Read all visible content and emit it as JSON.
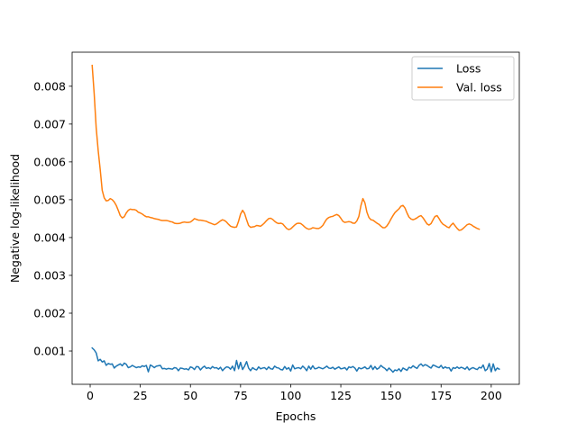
{
  "chart_data": {
    "type": "line",
    "title": "",
    "xlabel": "Epochs",
    "ylabel": "Negative log-likelihood",
    "xlim": [
      -9,
      214
    ],
    "ylim": [
      0.00012,
      0.0089
    ],
    "xticks": [
      0,
      25,
      50,
      75,
      100,
      125,
      150,
      175,
      200
    ],
    "xtick_labels": [
      "0",
      "25",
      "50",
      "75",
      "100",
      "125",
      "150",
      "175",
      "200"
    ],
    "yticks": [
      0.001,
      0.002,
      0.003,
      0.004,
      0.005,
      0.006,
      0.007,
      0.008
    ],
    "ytick_labels": [
      "0.001",
      "0.002",
      "0.003",
      "0.004",
      "0.005",
      "0.006",
      "0.007",
      "0.008"
    ],
    "grid": false,
    "legend_position": "top-right",
    "colors": {
      "Loss": "#1f77b4",
      "Val. loss": "#ff7f0e"
    },
    "series": [
      {
        "name": "Loss",
        "color": "#1f77b4",
        "x_start": 1,
        "values": [
          0.00108,
          0.00103,
          0.00095,
          0.00074,
          0.00078,
          0.00071,
          0.00074,
          0.00062,
          0.00067,
          0.00065,
          0.00066,
          0.00055,
          0.0006,
          0.00063,
          0.00066,
          0.00061,
          0.00068,
          0.00065,
          0.00056,
          0.00058,
          0.00062,
          0.00059,
          0.00056,
          0.00058,
          0.00057,
          0.00061,
          0.00059,
          0.00062,
          0.00045,
          0.00063,
          0.0006,
          0.00056,
          0.0006,
          0.00061,
          0.00062,
          0.00053,
          0.00054,
          0.00052,
          0.00054,
          0.00053,
          0.00052,
          0.00056,
          0.00055,
          0.00048,
          0.00055,
          0.00054,
          0.00052,
          0.00053,
          0.0005,
          0.00058,
          0.00056,
          0.00051,
          0.00059,
          0.00058,
          0.0005,
          0.00056,
          0.0006,
          0.00054,
          0.00056,
          0.00053,
          0.00059,
          0.00055,
          0.00056,
          0.00052,
          0.00057,
          0.00048,
          0.00054,
          0.00058,
          0.00057,
          0.00052,
          0.0006,
          0.00048,
          0.00075,
          0.00053,
          0.0007,
          0.00051,
          0.0006,
          0.00072,
          0.00055,
          0.00048,
          0.00056,
          0.00052,
          0.0005,
          0.00058,
          0.00053,
          0.00055,
          0.00056,
          0.00051,
          0.00058,
          0.00053,
          0.00052,
          0.0006,
          0.00056,
          0.00055,
          0.00051,
          0.0005,
          0.00059,
          0.00052,
          0.00056,
          0.00047,
          0.00063,
          0.00053,
          0.00055,
          0.00056,
          0.00053,
          0.0006,
          0.00055,
          0.00048,
          0.0006,
          0.00052,
          0.00061,
          0.00053,
          0.00054,
          0.00057,
          0.00055,
          0.00053,
          0.00056,
          0.0006,
          0.00055,
          0.00054,
          0.00057,
          0.00052,
          0.00055,
          0.00058,
          0.00053,
          0.00054,
          0.00056,
          0.0005,
          0.00058,
          0.00056,
          0.00059,
          0.00055,
          0.00047,
          0.00056,
          0.00053,
          0.00055,
          0.00058,
          0.00053,
          0.00054,
          0.00062,
          0.00051,
          0.00059,
          0.00052,
          0.00055,
          0.00062,
          0.00057,
          0.00054,
          0.00048,
          0.00055,
          0.0005,
          0.00044,
          0.0005,
          0.00048,
          0.00053,
          0.00046,
          0.00055,
          0.00052,
          0.00049,
          0.00057,
          0.00055,
          0.00061,
          0.00057,
          0.00054,
          0.00062,
          0.00066,
          0.0006,
          0.00064,
          0.00062,
          0.00058,
          0.00055,
          0.00063,
          0.00061,
          0.00058,
          0.00056,
          0.00062,
          0.00054,
          0.00058,
          0.00055,
          0.00056,
          0.00047,
          0.00056,
          0.00054,
          0.00058,
          0.00054,
          0.00057,
          0.00055,
          0.00052,
          0.00058,
          0.0005,
          0.00054,
          0.00056,
          0.00053,
          0.00051,
          0.00057,
          0.00055,
          0.00063,
          0.00048,
          0.00052,
          0.00067,
          0.00045,
          0.00066,
          0.00048,
          0.00055,
          0.00052
        ]
      },
      {
        "name": "Val. loss",
        "color": "#ff7f0e",
        "x_start": 1,
        "values": [
          0.00855,
          0.0078,
          0.0069,
          0.0063,
          0.0058,
          0.00525,
          0.00505,
          0.00497,
          0.00498,
          0.00503,
          0.005,
          0.00494,
          0.00485,
          0.00472,
          0.00458,
          0.00452,
          0.00455,
          0.00465,
          0.00472,
          0.00475,
          0.00474,
          0.00474,
          0.00472,
          0.00467,
          0.00465,
          0.00462,
          0.00458,
          0.00455,
          0.00455,
          0.00453,
          0.00452,
          0.0045,
          0.00449,
          0.00448,
          0.00446,
          0.00445,
          0.00445,
          0.00445,
          0.00444,
          0.00442,
          0.00441,
          0.00438,
          0.00437,
          0.00437,
          0.00438,
          0.0044,
          0.00441,
          0.0044,
          0.0044,
          0.00441,
          0.00445,
          0.0045,
          0.00448,
          0.00446,
          0.00446,
          0.00445,
          0.00444,
          0.00443,
          0.0044,
          0.00438,
          0.00436,
          0.00434,
          0.00436,
          0.0044,
          0.00444,
          0.00447,
          0.00445,
          0.00441,
          0.00435,
          0.0043,
          0.00428,
          0.00427,
          0.00428,
          0.00443,
          0.00462,
          0.00472,
          0.00464,
          0.00447,
          0.00432,
          0.00427,
          0.00428,
          0.00429,
          0.00432,
          0.00431,
          0.0043,
          0.00434,
          0.00439,
          0.00445,
          0.0045,
          0.00451,
          0.00448,
          0.00443,
          0.00439,
          0.00437,
          0.00438,
          0.00436,
          0.0043,
          0.00424,
          0.00421,
          0.00423,
          0.00428,
          0.00433,
          0.00437,
          0.00438,
          0.00437,
          0.00433,
          0.00428,
          0.00424,
          0.00422,
          0.00423,
          0.00426,
          0.00425,
          0.00424,
          0.00424,
          0.00427,
          0.00432,
          0.00441,
          0.00449,
          0.00453,
          0.00455,
          0.00456,
          0.00459,
          0.00461,
          0.00458,
          0.00451,
          0.00443,
          0.0044,
          0.00441,
          0.00442,
          0.00441,
          0.00438,
          0.00438,
          0.00444,
          0.00456,
          0.00484,
          0.00503,
          0.00492,
          0.00467,
          0.00453,
          0.00447,
          0.00446,
          0.00442,
          0.00438,
          0.00435,
          0.0043,
          0.00426,
          0.00426,
          0.00431,
          0.00439,
          0.00449,
          0.00458,
          0.00466,
          0.00471,
          0.00476,
          0.00483,
          0.00485,
          0.00478,
          0.00465,
          0.00454,
          0.00449,
          0.00447,
          0.00449,
          0.00452,
          0.00456,
          0.00458,
          0.00452,
          0.00444,
          0.00436,
          0.00433,
          0.00437,
          0.00447,
          0.00456,
          0.00458,
          0.0045,
          0.00441,
          0.00435,
          0.00432,
          0.00428,
          0.00426,
          0.00433,
          0.00438,
          0.00431,
          0.00424,
          0.00419,
          0.0042,
          0.00424,
          0.00429,
          0.00434,
          0.00436,
          0.00434,
          0.0043,
          0.00427,
          0.00424,
          0.00422
        ]
      }
    ]
  }
}
